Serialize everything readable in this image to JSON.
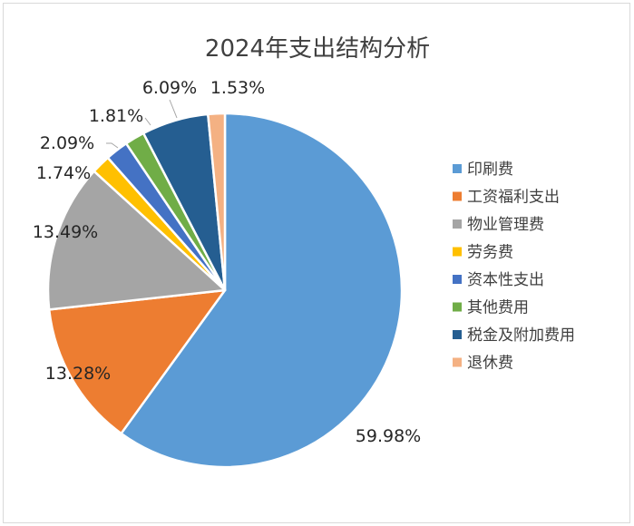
{
  "chart_data": {
    "type": "pie",
    "title": "2024年支出结构分析",
    "categories": [
      "印刷费",
      "工资福利支出",
      "物业管理费",
      "劳务费",
      "资本性支出",
      "其他费用",
      "税金及附加费用",
      "退休费"
    ],
    "values": [
      59.98,
      13.28,
      13.49,
      1.74,
      2.09,
      1.81,
      6.09,
      1.53
    ],
    "labels": [
      "59.98%",
      "13.28%",
      "13.49%",
      "1.74%",
      "2.09%",
      "1.81%",
      "6.09%",
      "1.53%"
    ],
    "colors": [
      "#5B9BD5",
      "#ED7D31",
      "#A5A5A5",
      "#FFC000",
      "#4472C4",
      "#70AD47",
      "#255E91",
      "#F4B183"
    ],
    "legend_position": "right",
    "start_angle_deg": 0,
    "direction": "clockwise"
  }
}
